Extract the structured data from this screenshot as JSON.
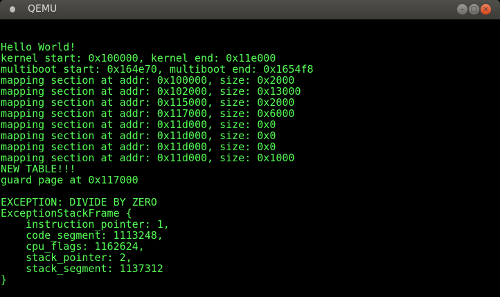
{
  "window": {
    "title": "QEMU",
    "icon": "qemu-app-icon",
    "buttons": {
      "minimize": "–",
      "maximize": "□",
      "close": "×"
    }
  },
  "console": {
    "text_color": "#55ff55",
    "start_row": 2,
    "lines": [
      "Hello World!",
      "kernel start: 0x100000, kernel end: 0x11e000",
      "multiboot start: 0x164e70, multiboot end: 0x1654f8",
      "mapping section at addr: 0x100000, size: 0x2000",
      "mapping section at addr: 0x102000, size: 0x13000",
      "mapping section at addr: 0x115000, size: 0x2000",
      "mapping section at addr: 0x117000, size: 0x6000",
      "mapping section at addr: 0x11d000, size: 0x0",
      "mapping section at addr: 0x11d000, size: 0x0",
      "mapping section at addr: 0x11d000, size: 0x0",
      "mapping section at addr: 0x11d000, size: 0x1000",
      "NEW TABLE!!!",
      "guard page at 0x117000",
      "",
      "EXCEPTION: DIVIDE BY ZERO",
      "ExceptionStackFrame {",
      "    instruction_pointer: 1,",
      "    code_segment: 1113248,",
      "    cpu_flags: 1162624,",
      "    stack_pointer: 2,",
      "    stack_segment: 1137312",
      "}"
    ]
  }
}
